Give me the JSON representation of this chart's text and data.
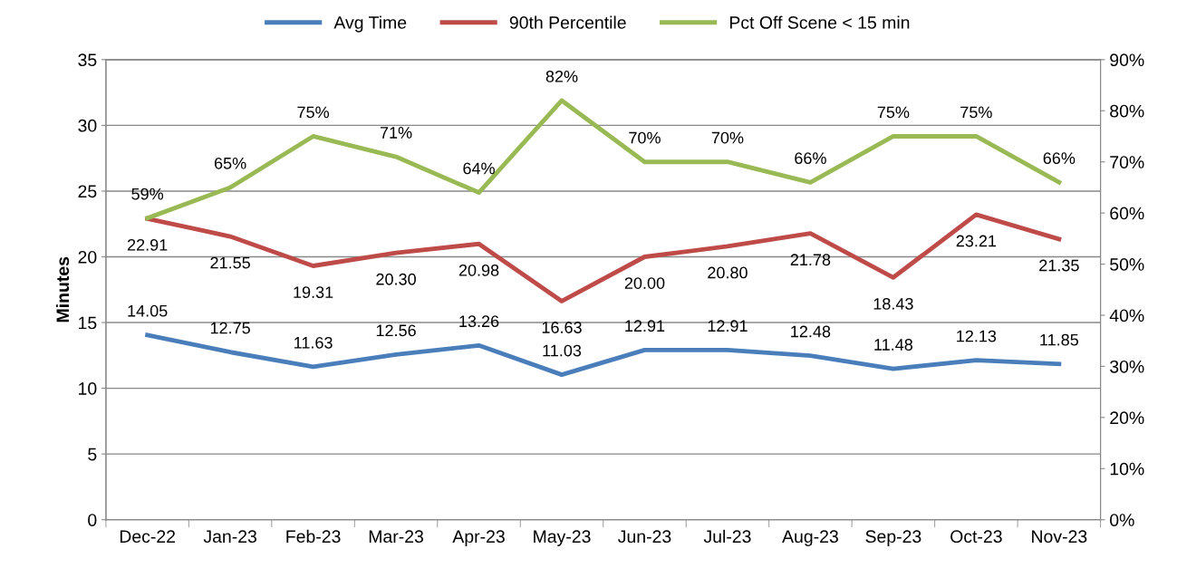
{
  "chart_data": {
    "type": "line",
    "ylabel": "Minutes",
    "categories": [
      "Dec-22",
      "Jan-23",
      "Feb-23",
      "Mar-23",
      "Apr-23",
      "May-23",
      "Jun-23",
      "Jul-23",
      "Aug-23",
      "Sep-23",
      "Oct-23",
      "Nov-23"
    ],
    "series": [
      {
        "name": "Avg Time",
        "color": "#4a7ebb",
        "values": [
          14.05,
          12.75,
          11.63,
          12.56,
          13.26,
          11.03,
          12.91,
          12.91,
          12.48,
          11.48,
          12.13,
          11.85
        ],
        "value_labels": [
          "14.05",
          "12.75",
          "11.63",
          "12.56",
          "13.26",
          "11.03",
          "12.91",
          "12.91",
          "12.48",
          "11.48",
          "12.13",
          "11.85"
        ]
      },
      {
        "name": "90th Percentile",
        "color": "#be4b48",
        "values": [
          22.91,
          21.55,
          19.31,
          20.3,
          20.98,
          16.63,
          20.0,
          20.8,
          21.78,
          18.43,
          23.21,
          21.35
        ],
        "value_labels": [
          "22.91",
          "21.55",
          "19.31",
          "20.30",
          "20.98",
          "16.63",
          "20.00",
          "20.80",
          "21.78",
          "18.43",
          "23.21",
          "21.35"
        ]
      },
      {
        "name": "Pct Off Scene < 15 min",
        "color": "#98b954",
        "axis": "y2",
        "values": [
          59,
          65,
          75,
          71,
          64,
          82,
          70,
          70,
          66,
          75,
          75,
          66
        ],
        "value_labels": [
          "59%",
          "65%",
          "75%",
          "71%",
          "64%",
          "82%",
          "70%",
          "70%",
          "66%",
          "75%",
          "75%",
          "66%"
        ]
      }
    ],
    "ylim": [
      0,
      35
    ],
    "yticks": [
      0,
      5,
      10,
      15,
      20,
      25,
      30,
      35
    ],
    "y2lim": [
      0,
      90
    ],
    "y2ticks": [
      {
        "value": 0,
        "label": "0%"
      },
      {
        "value": 10,
        "label": "10%"
      },
      {
        "value": 20,
        "label": "20%"
      },
      {
        "value": 30,
        "label": "30%"
      },
      {
        "value": 40,
        "label": "40%"
      },
      {
        "value": 50,
        "label": "50%"
      },
      {
        "value": 60,
        "label": "60%"
      },
      {
        "value": 70,
        "label": "70%"
      },
      {
        "value": 80,
        "label": "80%"
      },
      {
        "value": 90,
        "label": "90%"
      }
    ],
    "grid": "y",
    "legend": "top",
    "marker": "none",
    "line_style": "solid"
  }
}
